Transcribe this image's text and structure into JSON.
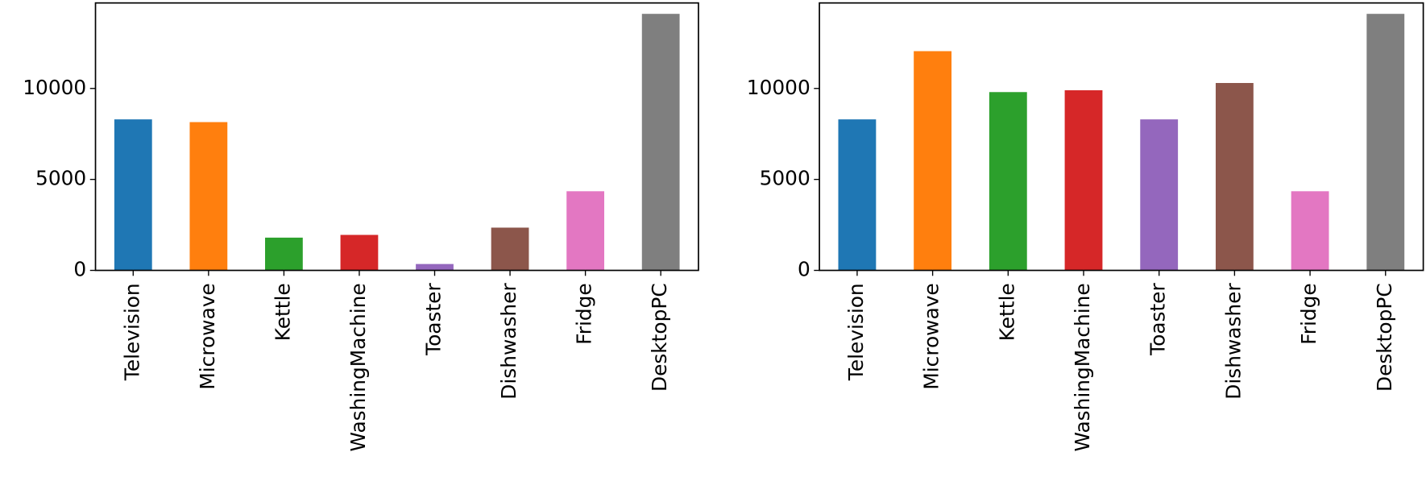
{
  "chart_data": [
    {
      "type": "bar",
      "categories": [
        "Television",
        "Microwave",
        "Kettle",
        "WashingMachine",
        "Toaster",
        "Dishwasher",
        "Fridge",
        "DesktopPC"
      ],
      "values": [
        8300,
        8150,
        1800,
        1950,
        350,
        2350,
        4350,
        14100
      ],
      "colors": [
        "#1f77b4",
        "#ff7f0e",
        "#2ca02c",
        "#d62728",
        "#9467bd",
        "#8c564b",
        "#e377c2",
        "#7f7f7f"
      ],
      "ylim": [
        0,
        14700
      ],
      "yticks": [
        0,
        5000,
        10000
      ]
    },
    {
      "type": "bar",
      "categories": [
        "Television",
        "Microwave",
        "Kettle",
        "WashingMachine",
        "Toaster",
        "Dishwasher",
        "Fridge",
        "DesktopPC"
      ],
      "values": [
        8300,
        12050,
        9800,
        9900,
        8300,
        10300,
        4350,
        14100
      ],
      "colors": [
        "#1f77b4",
        "#ff7f0e",
        "#2ca02c",
        "#d62728",
        "#9467bd",
        "#8c564b",
        "#e377c2",
        "#7f7f7f"
      ],
      "ylim": [
        0,
        14700
      ],
      "yticks": [
        0,
        5000,
        10000
      ]
    }
  ]
}
